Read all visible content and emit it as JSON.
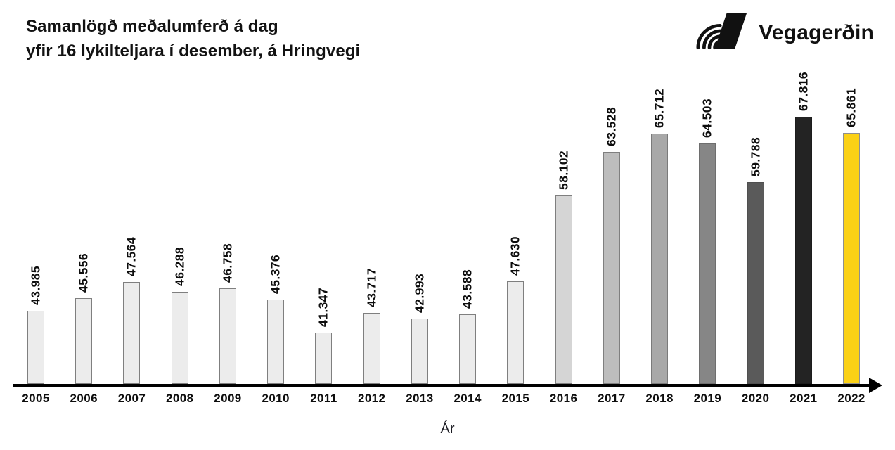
{
  "header": {
    "title_line1": "Samanlögð meðalumferð á dag",
    "title_line2": "yfir 16 lykilteljara í desember, á Hringvegi",
    "logo_text": "Vegagerðin",
    "logo_icon": "vegagerdin-road-stripes-icon",
    "logo_color": "#111111"
  },
  "chart_data": {
    "type": "bar",
    "title": "Samanlögð meðalumferð á dag yfir 16 lykilteljara í desember, á Hringvegi",
    "xlabel": "Ár",
    "ylabel": "",
    "categories": [
      "2005",
      "2006",
      "2007",
      "2008",
      "2009",
      "2010",
      "2011",
      "2012",
      "2013",
      "2014",
      "2015",
      "2016",
      "2017",
      "2018",
      "2019",
      "2020",
      "2021",
      "2022"
    ],
    "values": [
      43985,
      45556,
      47564,
      46288,
      46758,
      45376,
      41347,
      43717,
      42993,
      43588,
      47630,
      58102,
      63528,
      65712,
      64503,
      59788,
      67816,
      65861
    ],
    "value_labels": [
      "43.985",
      "45.556",
      "47.564",
      "46.288",
      "46.758",
      "45.376",
      "41.347",
      "43.717",
      "42.993",
      "43.588",
      "47.630",
      "58.102",
      "63.528",
      "65.712",
      "64.503",
      "59.788",
      "67.816",
      "65.861"
    ],
    "bar_colors": [
      "#ECECEC",
      "#ECECEC",
      "#ECECEC",
      "#ECECEC",
      "#ECECEC",
      "#ECECEC",
      "#ECECEC",
      "#ECECEC",
      "#ECECEC",
      "#ECECEC",
      "#ECECEC",
      "#D5D5D5",
      "#BDBDBD",
      "#A8A8A8",
      "#868686",
      "#5A5A5A",
      "#232323",
      "#FBD116"
    ],
    "bar_strokes": [
      "#7F7F7F",
      "#7F7F7F",
      "#7F7F7F",
      "#7F7F7F",
      "#7F7F7F",
      "#7F7F7F",
      "#7F7F7F",
      "#7F7F7F",
      "#7F7F7F",
      "#7F7F7F",
      "#7F7F7F",
      "#7F7F7F",
      "#7F7F7F",
      "#7A7A7A",
      "#6E6E6E",
      "#4F4F4F",
      "#1C1C1C",
      "#8F8F8F"
    ],
    "highlight_color": "#FBD116",
    "axis_color": "#000000",
    "axis_arrow": true,
    "value_label_rotation_deg": -90,
    "baseline_value": 35000,
    "ylim": [
      35000,
      70000
    ],
    "grid": false,
    "legend": false
  }
}
